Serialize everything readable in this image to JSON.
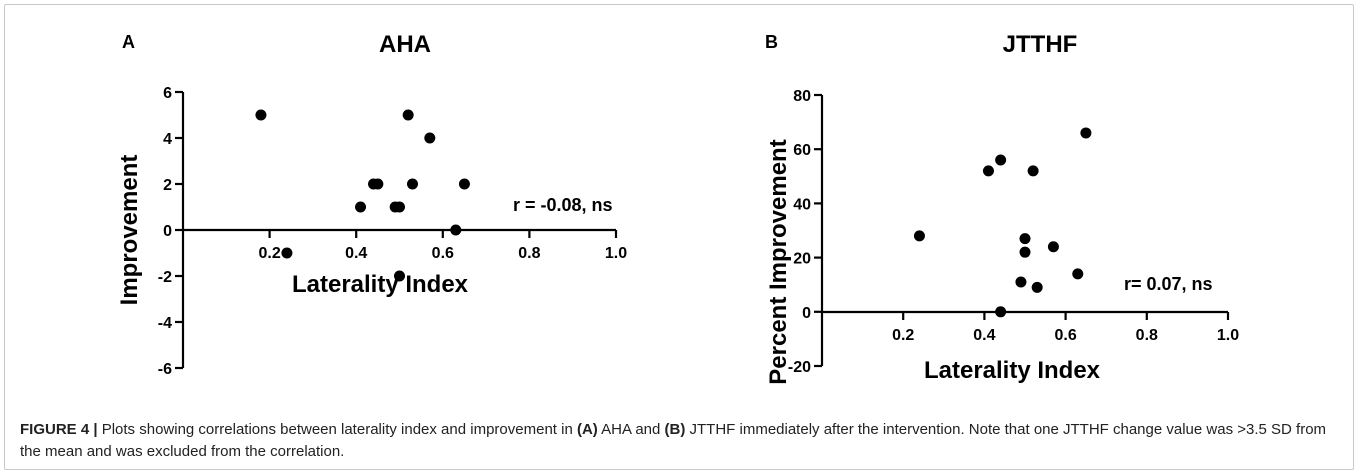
{
  "chart_data": [
    {
      "panel": "A",
      "type": "scatter",
      "title": "AHA",
      "xlabel": "Laterality Index",
      "ylabel": "Improvement",
      "xlim": [
        0,
        1.0
      ],
      "ylim": [
        -6,
        6
      ],
      "xticks": [
        "0.2",
        "0.4",
        "0.6",
        "0.8",
        "1.0"
      ],
      "yticks": [
        "6",
        "4",
        "2",
        "0",
        "-2",
        "-4",
        "-6"
      ],
      "annotation": "r = -0.08, ns",
      "points": [
        {
          "x": 0.18,
          "y": 5
        },
        {
          "x": 0.24,
          "y": -1
        },
        {
          "x": 0.41,
          "y": 1
        },
        {
          "x": 0.44,
          "y": 2
        },
        {
          "x": 0.45,
          "y": 2
        },
        {
          "x": 0.49,
          "y": 1
        },
        {
          "x": 0.5,
          "y": 1
        },
        {
          "x": 0.5,
          "y": -2
        },
        {
          "x": 0.52,
          "y": 5
        },
        {
          "x": 0.53,
          "y": 2
        },
        {
          "x": 0.57,
          "y": 4
        },
        {
          "x": 0.63,
          "y": 0
        },
        {
          "x": 0.65,
          "y": 2
        }
      ]
    },
    {
      "panel": "B",
      "type": "scatter",
      "title": "JTTHF",
      "xlabel": "Laterality Index",
      "ylabel": "Percent Improvement",
      "xlim": [
        0,
        1.0
      ],
      "ylim": [
        -20,
        80
      ],
      "xticks": [
        "0.2",
        "0.4",
        "0.6",
        "0.8",
        "1.0"
      ],
      "yticks": [
        "80",
        "60",
        "40",
        "20",
        "0",
        "-20"
      ],
      "annotation": "r= 0.07, ns",
      "points": [
        {
          "x": 0.24,
          "y": 28
        },
        {
          "x": 0.41,
          "y": 52
        },
        {
          "x": 0.44,
          "y": 56
        },
        {
          "x": 0.44,
          "y": 0
        },
        {
          "x": 0.49,
          "y": 11
        },
        {
          "x": 0.5,
          "y": 27
        },
        {
          "x": 0.5,
          "y": 22
        },
        {
          "x": 0.52,
          "y": 52
        },
        {
          "x": 0.53,
          "y": 9
        },
        {
          "x": 0.57,
          "y": 24
        },
        {
          "x": 0.63,
          "y": 14
        },
        {
          "x": 0.65,
          "y": 66
        }
      ]
    }
  ],
  "caption": {
    "label": "FIGURE 4 |",
    "part1": " Plots showing correlations between laterality index and improvement in ",
    "ref_a": "(A)",
    "part2": " AHA and ",
    "ref_b": "(B)",
    "part3": " JTTHF immediately after the intervention. Note that one JTTHF change value was >3.5 SD from the mean and was excluded from the correlation."
  }
}
